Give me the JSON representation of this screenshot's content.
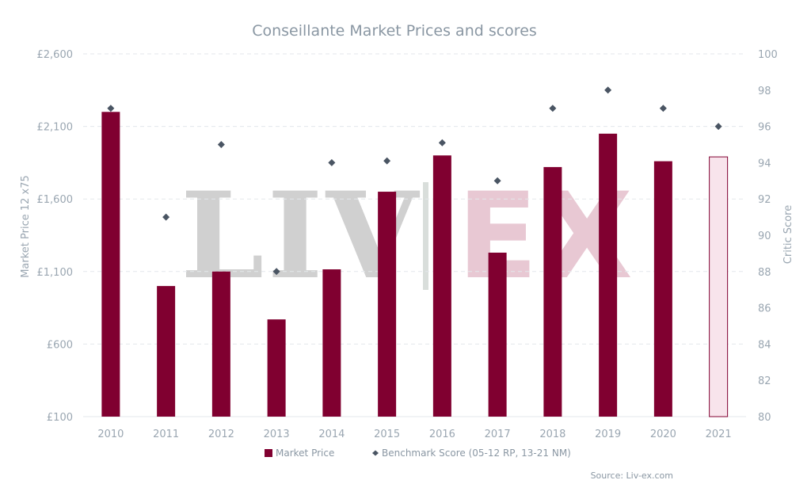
{
  "colors": {
    "bar": "#800030",
    "bar_estimate_fill": "#f8e4ec",
    "bar_estimate_stroke": "#800030",
    "score_marker": "#4a5563",
    "grid": "#e3e7eb",
    "text": "#9aa6b1"
  },
  "watermark": {
    "left": "LIV",
    "right": "EX"
  },
  "chart_data": {
    "type": "bar",
    "title": "Conseillante Market Prices and scores",
    "categories": [
      "2010",
      "2011",
      "2012",
      "2013",
      "2014",
      "2015",
      "2016",
      "2017",
      "2018",
      "2019",
      "2020",
      "2021"
    ],
    "series": [
      {
        "name": "Market Price",
        "type": "bar",
        "axis": "left",
        "values": [
          2200,
          1000,
          1100,
          770,
          1115,
          1650,
          1900,
          1230,
          1820,
          2050,
          1860,
          1890
        ],
        "estimate_index": 11
      },
      {
        "name": "Benchmark Score (05-12 RP, 13-21 NM)",
        "type": "scatter",
        "axis": "right",
        "marker": "diamond",
        "values": [
          97,
          91,
          95,
          88,
          94,
          94.1,
          95.1,
          93,
          97,
          98,
          97,
          96
        ]
      }
    ],
    "y_left": {
      "label": "Market Price 12 x75",
      "range": [
        100,
        2600
      ],
      "ticks": [
        100,
        600,
        1100,
        1600,
        2100,
        2600
      ],
      "tick_labels": [
        "£100",
        "£600",
        "£1,100",
        "£1,600",
        "£2,100",
        "£2,600"
      ]
    },
    "y_right": {
      "label": "Critic Score",
      "range": [
        80,
        100
      ],
      "ticks": [
        80,
        82,
        84,
        86,
        88,
        90,
        92,
        94,
        96,
        98,
        100
      ],
      "tick_labels": [
        "80",
        "82",
        "84",
        "86",
        "88",
        "90",
        "92",
        "94",
        "96",
        "98",
        "100"
      ]
    },
    "grid": "horizontal dashed",
    "legend": "bottom-center",
    "source": "Source: Liv-ex.com"
  }
}
